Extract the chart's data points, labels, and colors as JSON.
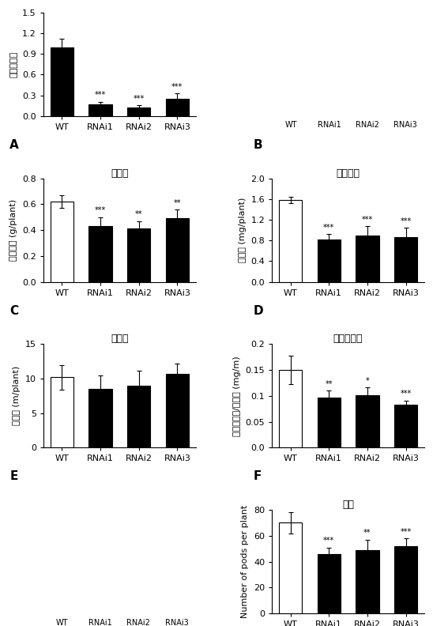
{
  "panel_A": {
    "title": "",
    "ylabel": "相对表达量",
    "categories": [
      "WT",
      "RNAi1",
      "RNAi2",
      "RNAi3"
    ],
    "values": [
      1.0,
      0.17,
      0.13,
      0.25
    ],
    "errors": [
      0.12,
      0.04,
      0.03,
      0.08
    ],
    "colors": [
      "#000000",
      "#000000",
      "#000000",
      "#000000"
    ],
    "sig_labels": [
      "",
      "***",
      "***",
      "***"
    ],
    "ylim": [
      0,
      1.5
    ],
    "yticks": [
      0.0,
      0.3,
      0.6,
      0.9,
      1.2,
      1.5
    ]
  },
  "panel_C": {
    "title": "生物量",
    "ylabel": "植株干重 (g/plant)",
    "categories": [
      "WT",
      "RNAi1",
      "RNAi2",
      "RNAi3"
    ],
    "values": [
      0.62,
      0.43,
      0.41,
      0.49
    ],
    "errors": [
      0.05,
      0.07,
      0.06,
      0.07
    ],
    "colors": [
      "#ffffff",
      "#000000",
      "#000000",
      "#000000"
    ],
    "sig_labels": [
      "",
      "***",
      "**",
      "**"
    ],
    "ylim": [
      0,
      0.8
    ],
    "yticks": [
      0.0,
      0.2,
      0.4,
      0.6,
      0.8
    ]
  },
  "panel_D": {
    "title": "磷吸收量",
    "ylabel": "磷含量 (mg/plant)",
    "categories": [
      "WT",
      "RNAi1",
      "RNAi2",
      "RNAi3"
    ],
    "values": [
      1.58,
      0.82,
      0.9,
      0.87
    ],
    "errors": [
      0.06,
      0.1,
      0.18,
      0.18
    ],
    "colors": [
      "#ffffff",
      "#000000",
      "#000000",
      "#000000"
    ],
    "sig_labels": [
      "",
      "***",
      "***",
      "***"
    ],
    "ylim": [
      0,
      2.0
    ],
    "yticks": [
      0.0,
      0.4,
      0.8,
      1.2,
      1.6,
      2.0
    ]
  },
  "panel_E": {
    "title": "总根长",
    "ylabel": "总根长 (m/plant)",
    "categories": [
      "WT",
      "RNAi1",
      "RNAi2",
      "RNAi3"
    ],
    "values": [
      10.2,
      8.5,
      9.0,
      10.7
    ],
    "errors": [
      1.8,
      2.0,
      2.2,
      1.5
    ],
    "colors": [
      "#ffffff",
      "#000000",
      "#000000",
      "#000000"
    ],
    "sig_labels": [
      "",
      "",
      "",
      ""
    ],
    "ylim": [
      0,
      15
    ],
    "yticks": [
      0,
      5,
      10,
      15
    ]
  },
  "panel_F": {
    "title": "磷吸收效率",
    "ylabel": "植株磷含量/总根长 (mg/m)",
    "categories": [
      "WT",
      "RNAi1",
      "RNAi2",
      "RNAi3"
    ],
    "values": [
      0.15,
      0.097,
      0.102,
      0.083
    ],
    "errors": [
      0.028,
      0.013,
      0.014,
      0.008
    ],
    "colors": [
      "#ffffff",
      "#000000",
      "#000000",
      "#000000"
    ],
    "sig_labels": [
      "",
      "**",
      "*",
      "***"
    ],
    "ylim": [
      0,
      0.2
    ],
    "yticks": [
      0.0,
      0.05,
      0.1,
      0.15,
      0.2
    ]
  },
  "panel_H": {
    "title": "荚数",
    "ylabel": "Number of pods per plant",
    "categories": [
      "WT",
      "RNAi1",
      "RNAi2",
      "RNAi3"
    ],
    "values": [
      70,
      46,
      49,
      52
    ],
    "errors": [
      8,
      5,
      8,
      6
    ],
    "colors": [
      "#ffffff",
      "#000000",
      "#000000",
      "#000000"
    ],
    "sig_labels": [
      "",
      "***",
      "**",
      "***"
    ],
    "ylim": [
      0,
      80
    ],
    "yticks": [
      0,
      20,
      40,
      60,
      80
    ]
  },
  "panel_B_labels": [
    "WT",
    "RNAi1",
    "RNAi2",
    "RNAi3"
  ],
  "panel_G_labels": [
    "WT",
    "RNAi1",
    "RNAi2",
    "RNAi3"
  ],
  "label_fontsize": 8,
  "tick_fontsize": 8,
  "sig_fontsize": 7,
  "title_fontsize": 9,
  "bar_width": 0.6,
  "edge_color": "#000000"
}
